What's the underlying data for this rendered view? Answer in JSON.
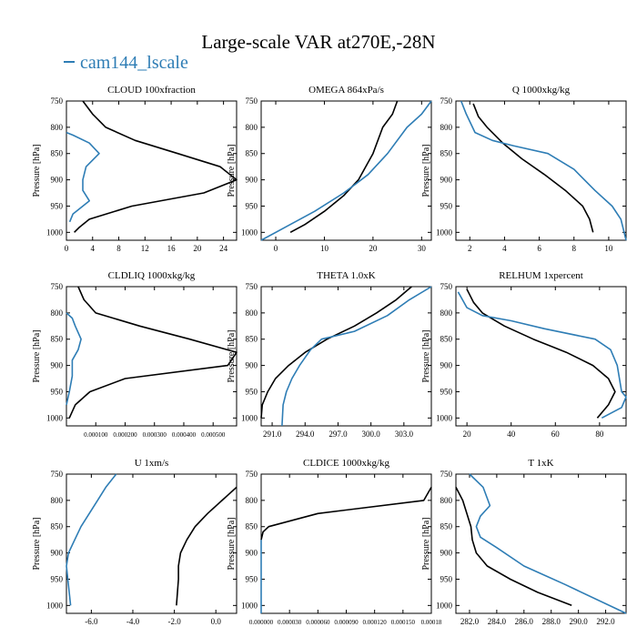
{
  "title": "Large-scale VAR at270E,-28N",
  "legend": {
    "label": "cam144_lscale",
    "color": "#2e7db5"
  },
  "colors": {
    "black": "#000000",
    "blue": "#2e7db5"
  },
  "chart_data": [
    {
      "type": "line",
      "title": "CLOUD  100xfraction",
      "ylabel": "Pressure [hPa]",
      "xlim": [
        0,
        26
      ],
      "ylim": [
        1015,
        750
      ],
      "xticks": [
        0,
        4,
        8,
        12,
        16,
        20,
        24
      ],
      "xticklabels": [
        "0",
        "4",
        "8",
        "12",
        "16",
        "20",
        "24"
      ],
      "yticks": [
        750,
        800,
        850,
        900,
        950,
        1000
      ],
      "yticklabels": [
        "750",
        "800",
        "850",
        "900",
        "950",
        "1000"
      ],
      "series": [
        {
          "color": "#000000",
          "x": [
            2.5,
            4,
            6,
            10.5,
            17,
            23.5,
            26,
            21,
            10,
            3.5,
            2,
            1.2
          ],
          "y": [
            750,
            775,
            800,
            825,
            850,
            875,
            900,
            925,
            950,
            975,
            990,
            1000
          ]
        },
        {
          "color": "#2e7db5",
          "x": [
            0,
            1,
            3.5,
            5,
            3,
            2.5,
            2.5,
            3.5,
            1,
            0.5
          ],
          "y": [
            810,
            815,
            830,
            850,
            875,
            900,
            920,
            940,
            965,
            980
          ]
        }
      ]
    },
    {
      "type": "line",
      "title": "OMEGA  864xPa/s",
      "ylabel": "Pressure [hPa]",
      "xlim": [
        -3,
        32
      ],
      "ylim": [
        1015,
        750
      ],
      "xticks": [
        0,
        10,
        20,
        30
      ],
      "xticklabels": [
        "0",
        "10",
        "20",
        "30"
      ],
      "yticks": [
        750,
        800,
        850,
        900,
        950,
        1000
      ],
      "yticklabels": [
        "750",
        "800",
        "850",
        "900",
        "950",
        "1000"
      ],
      "series": [
        {
          "color": "#000000",
          "x": [
            25,
            24,
            22,
            20,
            17,
            14,
            10,
            6,
            3
          ],
          "y": [
            750,
            775,
            800,
            850,
            900,
            930,
            960,
            985,
            1000
          ]
        },
        {
          "color": "#2e7db5",
          "x": [
            32,
            30,
            27,
            23,
            19,
            14,
            8,
            2,
            -3
          ],
          "y": [
            750,
            775,
            800,
            850,
            890,
            925,
            960,
            990,
            1015
          ]
        }
      ]
    },
    {
      "type": "line",
      "title": "Q  1000xkg/kg",
      "ylabel": "Pressure [hPa]",
      "xlim": [
        1.2,
        11
      ],
      "ylim": [
        1015,
        750
      ],
      "xticks": [
        2,
        4,
        6,
        8,
        10
      ],
      "xticklabels": [
        "2",
        "4",
        "6",
        "8",
        "10"
      ],
      "yticks": [
        750,
        800,
        850,
        900,
        950,
        1000
      ],
      "yticklabels": [
        "750",
        "800",
        "850",
        "900",
        "950",
        "1000"
      ],
      "series": [
        {
          "color": "#000000",
          "x": [
            2.2,
            2.5,
            3.0,
            3.9,
            5.0,
            6.3,
            7.5,
            8.5,
            8.9,
            9.1
          ],
          "y": [
            755,
            780,
            800,
            830,
            860,
            890,
            920,
            950,
            975,
            1000
          ]
        },
        {
          "color": "#2e7db5",
          "x": [
            1.5,
            1.8,
            2.3,
            3.3,
            4.5,
            6.5,
            8.0,
            9.2,
            10.2,
            10.7,
            11.0
          ],
          "y": [
            750,
            775,
            810,
            825,
            835,
            850,
            880,
            920,
            950,
            975,
            1015
          ]
        }
      ]
    },
    {
      "type": "line",
      "title": "CLDLIQ  1000xkg/kg",
      "ylabel": "Pressure [hPa]",
      "xlim": [
        0,
        0.00058
      ],
      "ylim": [
        1015,
        750
      ],
      "xticks": [
        0.0001,
        0.0002,
        0.0003,
        0.0004,
        0.0005
      ],
      "xticklabels": [
        "0.000100",
        "0.000200",
        "0.000300",
        "0.000400",
        "0.000500"
      ],
      "yticks": [
        750,
        800,
        850,
        900,
        950,
        1000
      ],
      "yticklabels": [
        "750",
        "800",
        "850",
        "900",
        "950",
        "1000"
      ],
      "series": [
        {
          "color": "#000000",
          "x": [
            4e-05,
            6e-05,
            0.0001,
            0.00025,
            0.00042,
            0.00058,
            0.00055,
            0.0002,
            8e-05,
            3e-05,
            1e-05
          ],
          "y": [
            750,
            775,
            800,
            825,
            850,
            875,
            900,
            925,
            950,
            975,
            1000
          ]
        },
        {
          "color": "#2e7db5",
          "x": [
            0,
            2e-05,
            3e-05,
            5e-05,
            4e-05,
            2e-05,
            2e-05,
            1e-05,
            0
          ],
          "y": [
            800,
            810,
            825,
            850,
            870,
            890,
            920,
            950,
            975
          ]
        }
      ]
    },
    {
      "type": "line",
      "title": "THETA  1.0xK",
      "ylabel": "Pressure [hPa]",
      "xlim": [
        290,
        305.5
      ],
      "ylim": [
        1015,
        750
      ],
      "xticks": [
        291,
        294,
        297,
        300,
        303
      ],
      "xticklabels": [
        "291.0",
        "294.0",
        "297.0",
        "300.0",
        "303.0"
      ],
      "yticks": [
        750,
        800,
        850,
        900,
        950,
        1000
      ],
      "yticklabels": [
        "750",
        "800",
        "850",
        "900",
        "950",
        "1000"
      ],
      "series": [
        {
          "color": "#000000",
          "x": [
            303.7,
            302.3,
            300.5,
            298.5,
            296,
            294,
            292.5,
            291.3,
            290.6,
            290.1,
            290
          ],
          "y": [
            750,
            775,
            800,
            825,
            850,
            875,
            900,
            925,
            950,
            975,
            1000
          ]
        },
        {
          "color": "#2e7db5",
          "x": [
            305.5,
            303.5,
            301.5,
            298.5,
            295.5,
            294.5,
            293.5,
            292.8,
            292.3,
            292.0,
            291.9
          ],
          "y": [
            750,
            775,
            805,
            835,
            850,
            870,
            900,
            925,
            950,
            975,
            1015
          ]
        }
      ]
    },
    {
      "type": "line",
      "title": "RELHUM  1xpercent",
      "ylabel": "Pressure [hPa]",
      "xlim": [
        15,
        92
      ],
      "ylim": [
        1015,
        750
      ],
      "xticks": [
        20,
        40,
        60,
        80
      ],
      "xticklabels": [
        "20",
        "40",
        "60",
        "80"
      ],
      "yticks": [
        750,
        800,
        850,
        900,
        950,
        1000
      ],
      "yticklabels": [
        "750",
        "800",
        "850",
        "900",
        "950",
        "1000"
      ],
      "series": [
        {
          "color": "#000000",
          "x": [
            20,
            23,
            27,
            37,
            50,
            65,
            77,
            84,
            87,
            84,
            79
          ],
          "y": [
            755,
            780,
            800,
            825,
            850,
            875,
            900,
            925,
            950,
            975,
            1000
          ]
        },
        {
          "color": "#2e7db5",
          "x": [
            16,
            20,
            27,
            40,
            55,
            78,
            85,
            88,
            89,
            90,
            92,
            90,
            81
          ],
          "y": [
            760,
            790,
            805,
            815,
            830,
            850,
            870,
            900,
            925,
            950,
            960,
            980,
            1000
          ]
        }
      ]
    },
    {
      "type": "line",
      "title": "U  1xm/s",
      "ylabel": "Pressure [hPa]",
      "xlim": [
        -7.2,
        1.0
      ],
      "ylim": [
        1015,
        750
      ],
      "xticks": [
        -6,
        -4,
        -2,
        0
      ],
      "xticklabels": [
        "-6.0",
        "-4.0",
        "-2.0",
        "0.0"
      ],
      "yticks": [
        750,
        800,
        850,
        900,
        950,
        1000
      ],
      "yticklabels": [
        "750",
        "800",
        "850",
        "900",
        "950",
        "1000"
      ],
      "series": [
        {
          "color": "#000000",
          "x": [
            1.0,
            0.3,
            -0.4,
            -1.0,
            -1.4,
            -1.7,
            -1.8,
            -1.8,
            -1.9
          ],
          "y": [
            775,
            800,
            825,
            850,
            875,
            900,
            925,
            950,
            1000
          ]
        },
        {
          "color": "#2e7db5",
          "x": [
            -4.8,
            -5.3,
            -5.7,
            -6.1,
            -6.5,
            -6.8,
            -7.1,
            -7.2,
            -7.0
          ],
          "y": [
            750,
            775,
            800,
            825,
            850,
            875,
            900,
            925,
            1000
          ]
        }
      ]
    },
    {
      "type": "line",
      "title": "CLDICE  1000xkg/kg",
      "ylabel": "Pressure [hPa]",
      "xlim": [
        0,
        0.00018
      ],
      "ylim": [
        1015,
        750
      ],
      "xticks": [
        0,
        3e-05,
        6e-05,
        9e-05,
        0.00012,
        0.00015,
        0.00018
      ],
      "xticklabels": [
        "0.000000",
        "0.000030",
        "0.000060",
        "0.000090",
        "0.000120",
        "0.000150",
        "0.00018"
      ],
      "yticks": [
        750,
        800,
        850,
        900,
        950,
        1000
      ],
      "yticklabels": [
        "750",
        "800",
        "850",
        "900",
        "950",
        "1000"
      ],
      "series": [
        {
          "color": "#000000",
          "x": [
            0.00018,
            0.000172,
            6e-05,
            8e-06,
            2e-06,
            0
          ],
          "y": [
            775,
            800,
            825,
            850,
            860,
            875
          ]
        },
        {
          "color": "#2e7db5",
          "x": [
            0,
            0,
            0
          ],
          "y": [
            875,
            950,
            1015
          ]
        }
      ]
    },
    {
      "type": "line",
      "title": "T  1xK",
      "ylabel": "Pressure [hPa]",
      "xlim": [
        281,
        293.5
      ],
      "ylim": [
        1015,
        750
      ],
      "xticks": [
        282,
        284,
        286,
        288,
        290,
        292
      ],
      "xticklabels": [
        "282.0",
        "284.0",
        "286.0",
        "288.0",
        "290.0",
        "292.0"
      ],
      "yticks": [
        750,
        800,
        850,
        900,
        950,
        1000
      ],
      "yticklabels": [
        "750",
        "800",
        "850",
        "900",
        "950",
        "1000"
      ],
      "series": [
        {
          "color": "#000000",
          "x": [
            281,
            281.5,
            281.8,
            282.1,
            282.2,
            282.5,
            283.3,
            285,
            287,
            289.5
          ],
          "y": [
            775,
            800,
            825,
            850,
            875,
            900,
            925,
            950,
            975,
            1000
          ]
        },
        {
          "color": "#2e7db5",
          "x": [
            282,
            283,
            283.5,
            282.8,
            282.5,
            282.8,
            284,
            286,
            289,
            293.5
          ],
          "y": [
            750,
            775,
            810,
            830,
            850,
            870,
            890,
            925,
            960,
            1015
          ]
        }
      ]
    }
  ]
}
